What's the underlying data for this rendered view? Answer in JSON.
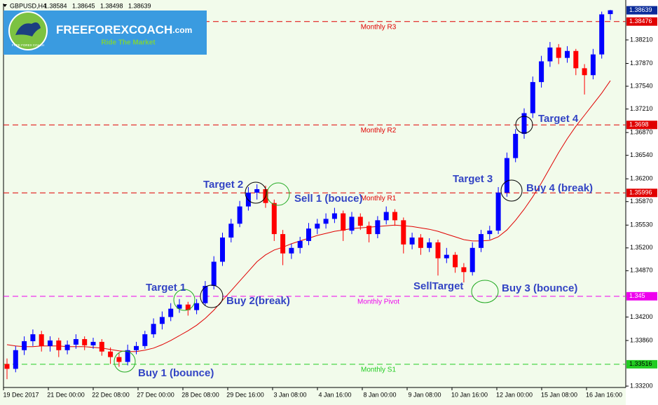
{
  "logo": {
    "name": "FREEFOREXCOACH",
    "domain": ".com",
    "tagline": "Ride The Market",
    "small": "FREE FOREX COACH"
  },
  "chart_data": {
    "type": "candlestick",
    "symbol": "GBPUSD,H4",
    "up_color": "#0000ff",
    "down_color": "#ff0000",
    "background": "#f2fbeb",
    "ylim": [
      1.3318,
      1.38737
    ],
    "yticks": [
      {
        "value": 1.3821,
        "label": "1.38210"
      },
      {
        "value": 1.3787,
        "label": "1.37870"
      },
      {
        "value": 1.3754,
        "label": "1.37540"
      },
      {
        "value": 1.3721,
        "label": "1.37210"
      },
      {
        "value": 1.3687,
        "label": "1.36870"
      },
      {
        "value": 1.3654,
        "label": "1.36540"
      },
      {
        "value": 1.362,
        "label": "1.36200"
      },
      {
        "value": 1.3587,
        "label": "1.35870"
      },
      {
        "value": 1.3553,
        "label": "1.35530"
      },
      {
        "value": 1.352,
        "label": "1.35200"
      },
      {
        "value": 1.3487,
        "label": "1.34870"
      },
      {
        "value": 1.342,
        "label": "1.34200"
      },
      {
        "value": 1.3386,
        "label": "1.33860"
      },
      {
        "value": 1.332,
        "label": "1.33200"
      }
    ],
    "x_labels": [
      "19 Dec 2017",
      "21 Dec 00:00",
      "22 Dec 08:00",
      "27 Dec 00:00",
      "28 Dec 08:00",
      "29 Dec 16:00",
      "3 Jan 08:00",
      "4 Jan 16:00",
      "8 Jan 00:00",
      "9 Jan 08:00",
      "10 Jan 16:00",
      "12 Jan 00:00",
      "15 Jan 08:00",
      "16 Jan 16:00"
    ],
    "ohlc": [
      [
        1.3352,
        1.336,
        1.333,
        1.3345
      ],
      [
        1.3345,
        1.3378,
        1.334,
        1.3372
      ],
      [
        1.3372,
        1.3392,
        1.3365,
        1.3385
      ],
      [
        1.3385,
        1.3402,
        1.3378,
        1.3395
      ],
      [
        1.3395,
        1.34,
        1.337,
        1.3378
      ],
      [
        1.3378,
        1.3392,
        1.337,
        1.3386
      ],
      [
        1.3386,
        1.339,
        1.3362,
        1.3372
      ],
      [
        1.3372,
        1.3386,
        1.3366,
        1.338
      ],
      [
        1.338,
        1.3395,
        1.3374,
        1.3388
      ],
      [
        1.3388,
        1.3392,
        1.3372,
        1.3379
      ],
      [
        1.3379,
        1.339,
        1.3374,
        1.3384
      ],
      [
        1.3384,
        1.3388,
        1.3364,
        1.337
      ],
      [
        1.337,
        1.3376,
        1.3352,
        1.3362
      ],
      [
        1.3362,
        1.3368,
        1.3348,
        1.3355
      ],
      [
        1.3355,
        1.338,
        1.335,
        1.3372
      ],
      [
        1.3372,
        1.3384,
        1.3366,
        1.3378
      ],
      [
        1.3378,
        1.34,
        1.3374,
        1.3395
      ],
      [
        1.3395,
        1.3418,
        1.339,
        1.341
      ],
      [
        1.341,
        1.3428,
        1.3402,
        1.342
      ],
      [
        1.342,
        1.344,
        1.3414,
        1.3432
      ],
      [
        1.3432,
        1.3446,
        1.3426,
        1.3438
      ],
      [
        1.3438,
        1.3442,
        1.3422,
        1.343
      ],
      [
        1.343,
        1.3446,
        1.3424,
        1.344
      ],
      [
        1.344,
        1.3472,
        1.3436,
        1.3465
      ],
      [
        1.3465,
        1.3508,
        1.346,
        1.35
      ],
      [
        1.35,
        1.3542,
        1.3494,
        1.3535
      ],
      [
        1.3535,
        1.3562,
        1.3528,
        1.3555
      ],
      [
        1.3555,
        1.3588,
        1.355,
        1.358
      ],
      [
        1.358,
        1.3608,
        1.3574,
        1.36
      ],
      [
        1.36,
        1.3612,
        1.359,
        1.3605
      ],
      [
        1.3605,
        1.361,
        1.3578,
        1.3585
      ],
      [
        1.3585,
        1.359,
        1.353,
        1.354
      ],
      [
        1.354,
        1.3546,
        1.3495,
        1.3512
      ],
      [
        1.3512,
        1.3526,
        1.3504,
        1.352
      ],
      [
        1.352,
        1.3536,
        1.3512,
        1.353
      ],
      [
        1.353,
        1.3556,
        1.3524,
        1.3548
      ],
      [
        1.3548,
        1.3562,
        1.354,
        1.3555
      ],
      [
        1.3555,
        1.357,
        1.3548,
        1.3562
      ],
      [
        1.3562,
        1.3578,
        1.3556,
        1.357
      ],
      [
        1.357,
        1.3574,
        1.353,
        1.3545
      ],
      [
        1.3545,
        1.3572,
        1.354,
        1.3565
      ],
      [
        1.3565,
        1.357,
        1.3546,
        1.3552
      ],
      [
        1.3552,
        1.3558,
        1.3528,
        1.354
      ],
      [
        1.354,
        1.3566,
        1.3534,
        1.356
      ],
      [
        1.356,
        1.358,
        1.3554,
        1.3572
      ],
      [
        1.3572,
        1.3576,
        1.3552,
        1.356
      ],
      [
        1.356,
        1.3564,
        1.3512,
        1.3525
      ],
      [
        1.3525,
        1.3542,
        1.3518,
        1.3535
      ],
      [
        1.3535,
        1.354,
        1.351,
        1.352
      ],
      [
        1.352,
        1.3534,
        1.3514,
        1.3528
      ],
      [
        1.3528,
        1.3532,
        1.348,
        1.3505
      ],
      [
        1.3505,
        1.352,
        1.3498,
        1.351
      ],
      [
        1.351,
        1.3514,
        1.3484,
        1.3492
      ],
      [
        1.3492,
        1.3498,
        1.347,
        1.3485
      ],
      [
        1.3485,
        1.3528,
        1.348,
        1.352
      ],
      [
        1.352,
        1.3546,
        1.3514,
        1.354
      ],
      [
        1.354,
        1.3552,
        1.3532,
        1.3545
      ],
      [
        1.3545,
        1.3608,
        1.354,
        1.36
      ],
      [
        1.36,
        1.3658,
        1.3594,
        1.365
      ],
      [
        1.365,
        1.3692,
        1.3644,
        1.3685
      ],
      [
        1.3685,
        1.3722,
        1.3678,
        1.3715
      ],
      [
        1.3715,
        1.3768,
        1.3708,
        1.376
      ],
      [
        1.376,
        1.3798,
        1.3752,
        1.379
      ],
      [
        1.379,
        1.3818,
        1.3782,
        1.381
      ],
      [
        1.381,
        1.3815,
        1.3786,
        1.3795
      ],
      [
        1.3795,
        1.3812,
        1.3788,
        1.3805
      ],
      [
        1.3805,
        1.3808,
        1.377,
        1.378
      ],
      [
        1.378,
        1.3786,
        1.3742,
        1.377
      ],
      [
        1.377,
        1.3808,
        1.3764,
        1.38
      ],
      [
        1.38,
        1.3862,
        1.3794,
        1.3858
      ],
      [
        1.38584,
        1.38645,
        1.38498,
        1.38639
      ]
    ],
    "ma": {
      "color": "#e00000",
      "values": [
        1.338,
        1.3378,
        1.3377,
        1.3377,
        1.3378,
        1.3378,
        1.3378,
        1.3377,
        1.3377,
        1.3377,
        1.3376,
        1.3375,
        1.3373,
        1.3371,
        1.337,
        1.337,
        1.3372,
        1.3375,
        1.338,
        1.3386,
        1.3393,
        1.34,
        1.3408,
        1.3418,
        1.343,
        1.3444,
        1.3458,
        1.3472,
        1.3486,
        1.35,
        1.351,
        1.3517,
        1.3521,
        1.3526,
        1.353,
        1.3534,
        1.3538,
        1.3541,
        1.3544,
        1.3546,
        1.3548,
        1.3549,
        1.355,
        1.3551,
        1.3552,
        1.3553,
        1.3552,
        1.3551,
        1.3549,
        1.3547,
        1.3544,
        1.354,
        1.3536,
        1.3532,
        1.353,
        1.353,
        1.3531,
        1.3536,
        1.3546,
        1.356,
        1.3576,
        1.3594,
        1.3614,
        1.3636,
        1.3658,
        1.3678,
        1.3696,
        1.3712,
        1.3728,
        1.3744,
        1.3762
      ]
    },
    "levels": [
      {
        "name": "Monthly R3",
        "value": 1.38476,
        "color": "#e00000"
      },
      {
        "name": "Monthly R2",
        "value": 1.3698,
        "color": "#e00000"
      },
      {
        "name": "Monthly R1",
        "value": 1.35996,
        "color": "#e00000"
      },
      {
        "name": "Monthly Pivot",
        "value": 1.345,
        "color": "#ee00ee"
      },
      {
        "name": "Monthly S1",
        "value": 1.33516,
        "color": "#22cc22"
      }
    ],
    "annotations": [
      "Target 1",
      "Buy 1 (bounce)",
      "Buy 2(break)",
      "Target 2",
      "Sell 1 (bouce)",
      "SellTarget",
      "Buy 3 (bounce)",
      "Target 3",
      "Buy 4 (break)",
      "Target 4"
    ]
  }
}
